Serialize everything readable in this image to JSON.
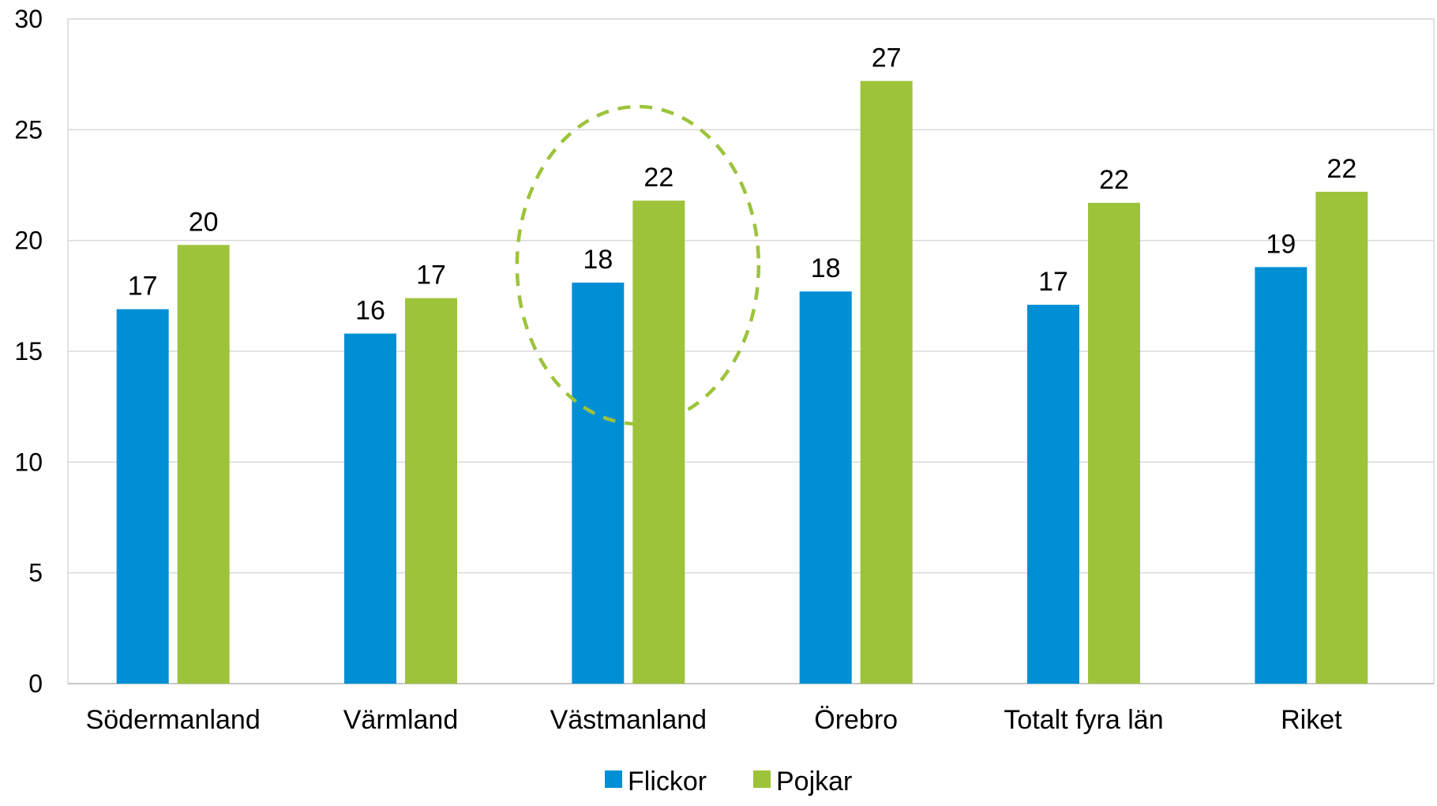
{
  "chart_data": {
    "type": "bar",
    "categories": [
      "Södermanland",
      "Värmland",
      "Västmanland",
      "Örebro",
      "Totalt fyra län",
      "Riket"
    ],
    "series": [
      {
        "name": "Flickor",
        "color": "#008fd5",
        "values": [
          16.9,
          15.8,
          18.1,
          17.7,
          17.1,
          18.8
        ],
        "labels": [
          "17",
          "16",
          "18",
          "18",
          "17",
          "19"
        ]
      },
      {
        "name": "Pojkar",
        "color": "#9dc33b",
        "values": [
          19.8,
          17.4,
          21.8,
          27.2,
          21.7,
          22.2
        ],
        "labels": [
          "20",
          "17",
          "22",
          "27",
          "22",
          "22"
        ]
      }
    ],
    "ylim": [
      0,
      30
    ],
    "yticks": [
      "0",
      "5",
      "10",
      "15",
      "20",
      "25",
      "30"
    ],
    "grid": true,
    "legend": "bottom",
    "highlight": {
      "category": "Västmanland",
      "style": "dashed-ellipse",
      "color": "#9dc33b"
    }
  }
}
